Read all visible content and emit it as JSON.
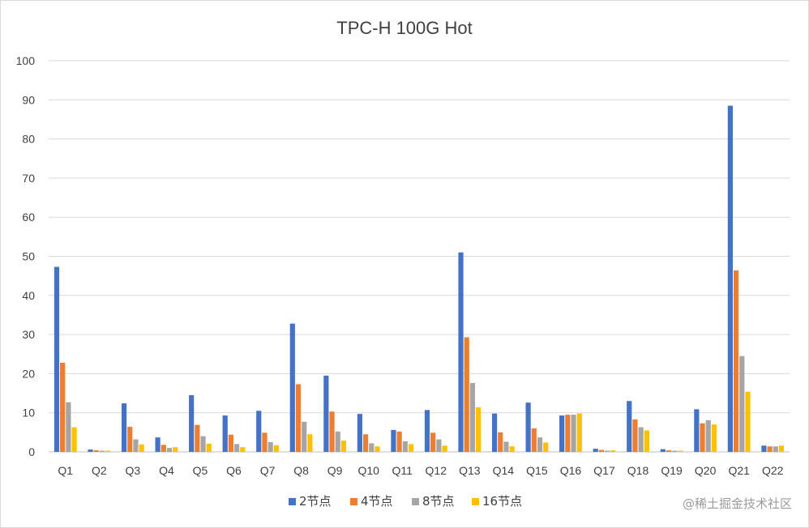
{
  "chart_data": {
    "type": "bar",
    "title": "TPC-H 100G Hot",
    "xlabel": "",
    "ylabel": "",
    "ylim": [
      0,
      100
    ],
    "yticks": [
      0,
      10,
      20,
      30,
      40,
      50,
      60,
      70,
      80,
      90,
      100
    ],
    "grid": true,
    "legend_position": "bottom",
    "categories": [
      "Q1",
      "Q2",
      "Q3",
      "Q4",
      "Q5",
      "Q6",
      "Q7",
      "Q8",
      "Q9",
      "Q10",
      "Q11",
      "Q12",
      "Q13",
      "Q14",
      "Q15",
      "Q16",
      "Q17",
      "Q18",
      "Q19",
      "Q20",
      "Q21",
      "Q22"
    ],
    "series": [
      {
        "name": "2节点",
        "color": "#4472c4",
        "values": [
          47.3,
          0.6,
          12.4,
          3.7,
          14.5,
          9.3,
          10.5,
          32.8,
          19.5,
          9.7,
          5.6,
          10.7,
          51.0,
          9.8,
          12.6,
          9.3,
          0.8,
          13.0,
          0.7,
          10.9,
          88.5,
          1.6
        ]
      },
      {
        "name": "4节点",
        "color": "#ed7d31",
        "values": [
          22.8,
          0.4,
          6.4,
          1.8,
          6.9,
          4.4,
          4.9,
          17.3,
          10.3,
          4.5,
          5.2,
          4.9,
          29.3,
          5.0,
          6.0,
          9.5,
          0.5,
          8.3,
          0.4,
          7.3,
          46.4,
          1.4
        ]
      },
      {
        "name": "8节点",
        "color": "#a5a5a5",
        "values": [
          12.7,
          0.3,
          3.2,
          1.0,
          4.0,
          2.0,
          2.5,
          7.7,
          5.2,
          2.2,
          2.7,
          3.2,
          17.6,
          2.6,
          3.7,
          9.5,
          0.3,
          6.3,
          0.3,
          8.1,
          24.5,
          1.4
        ]
      },
      {
        "name": "16节点",
        "color": "#ffc000",
        "values": [
          6.3,
          0.3,
          1.9,
          1.2,
          2.1,
          1.2,
          1.7,
          4.5,
          2.9,
          1.4,
          2.0,
          1.6,
          11.4,
          1.4,
          2.4,
          9.8,
          0.4,
          5.5,
          0.3,
          7.0,
          15.4,
          1.6
        ]
      }
    ]
  },
  "watermark": "@稀土掘金技术社区"
}
